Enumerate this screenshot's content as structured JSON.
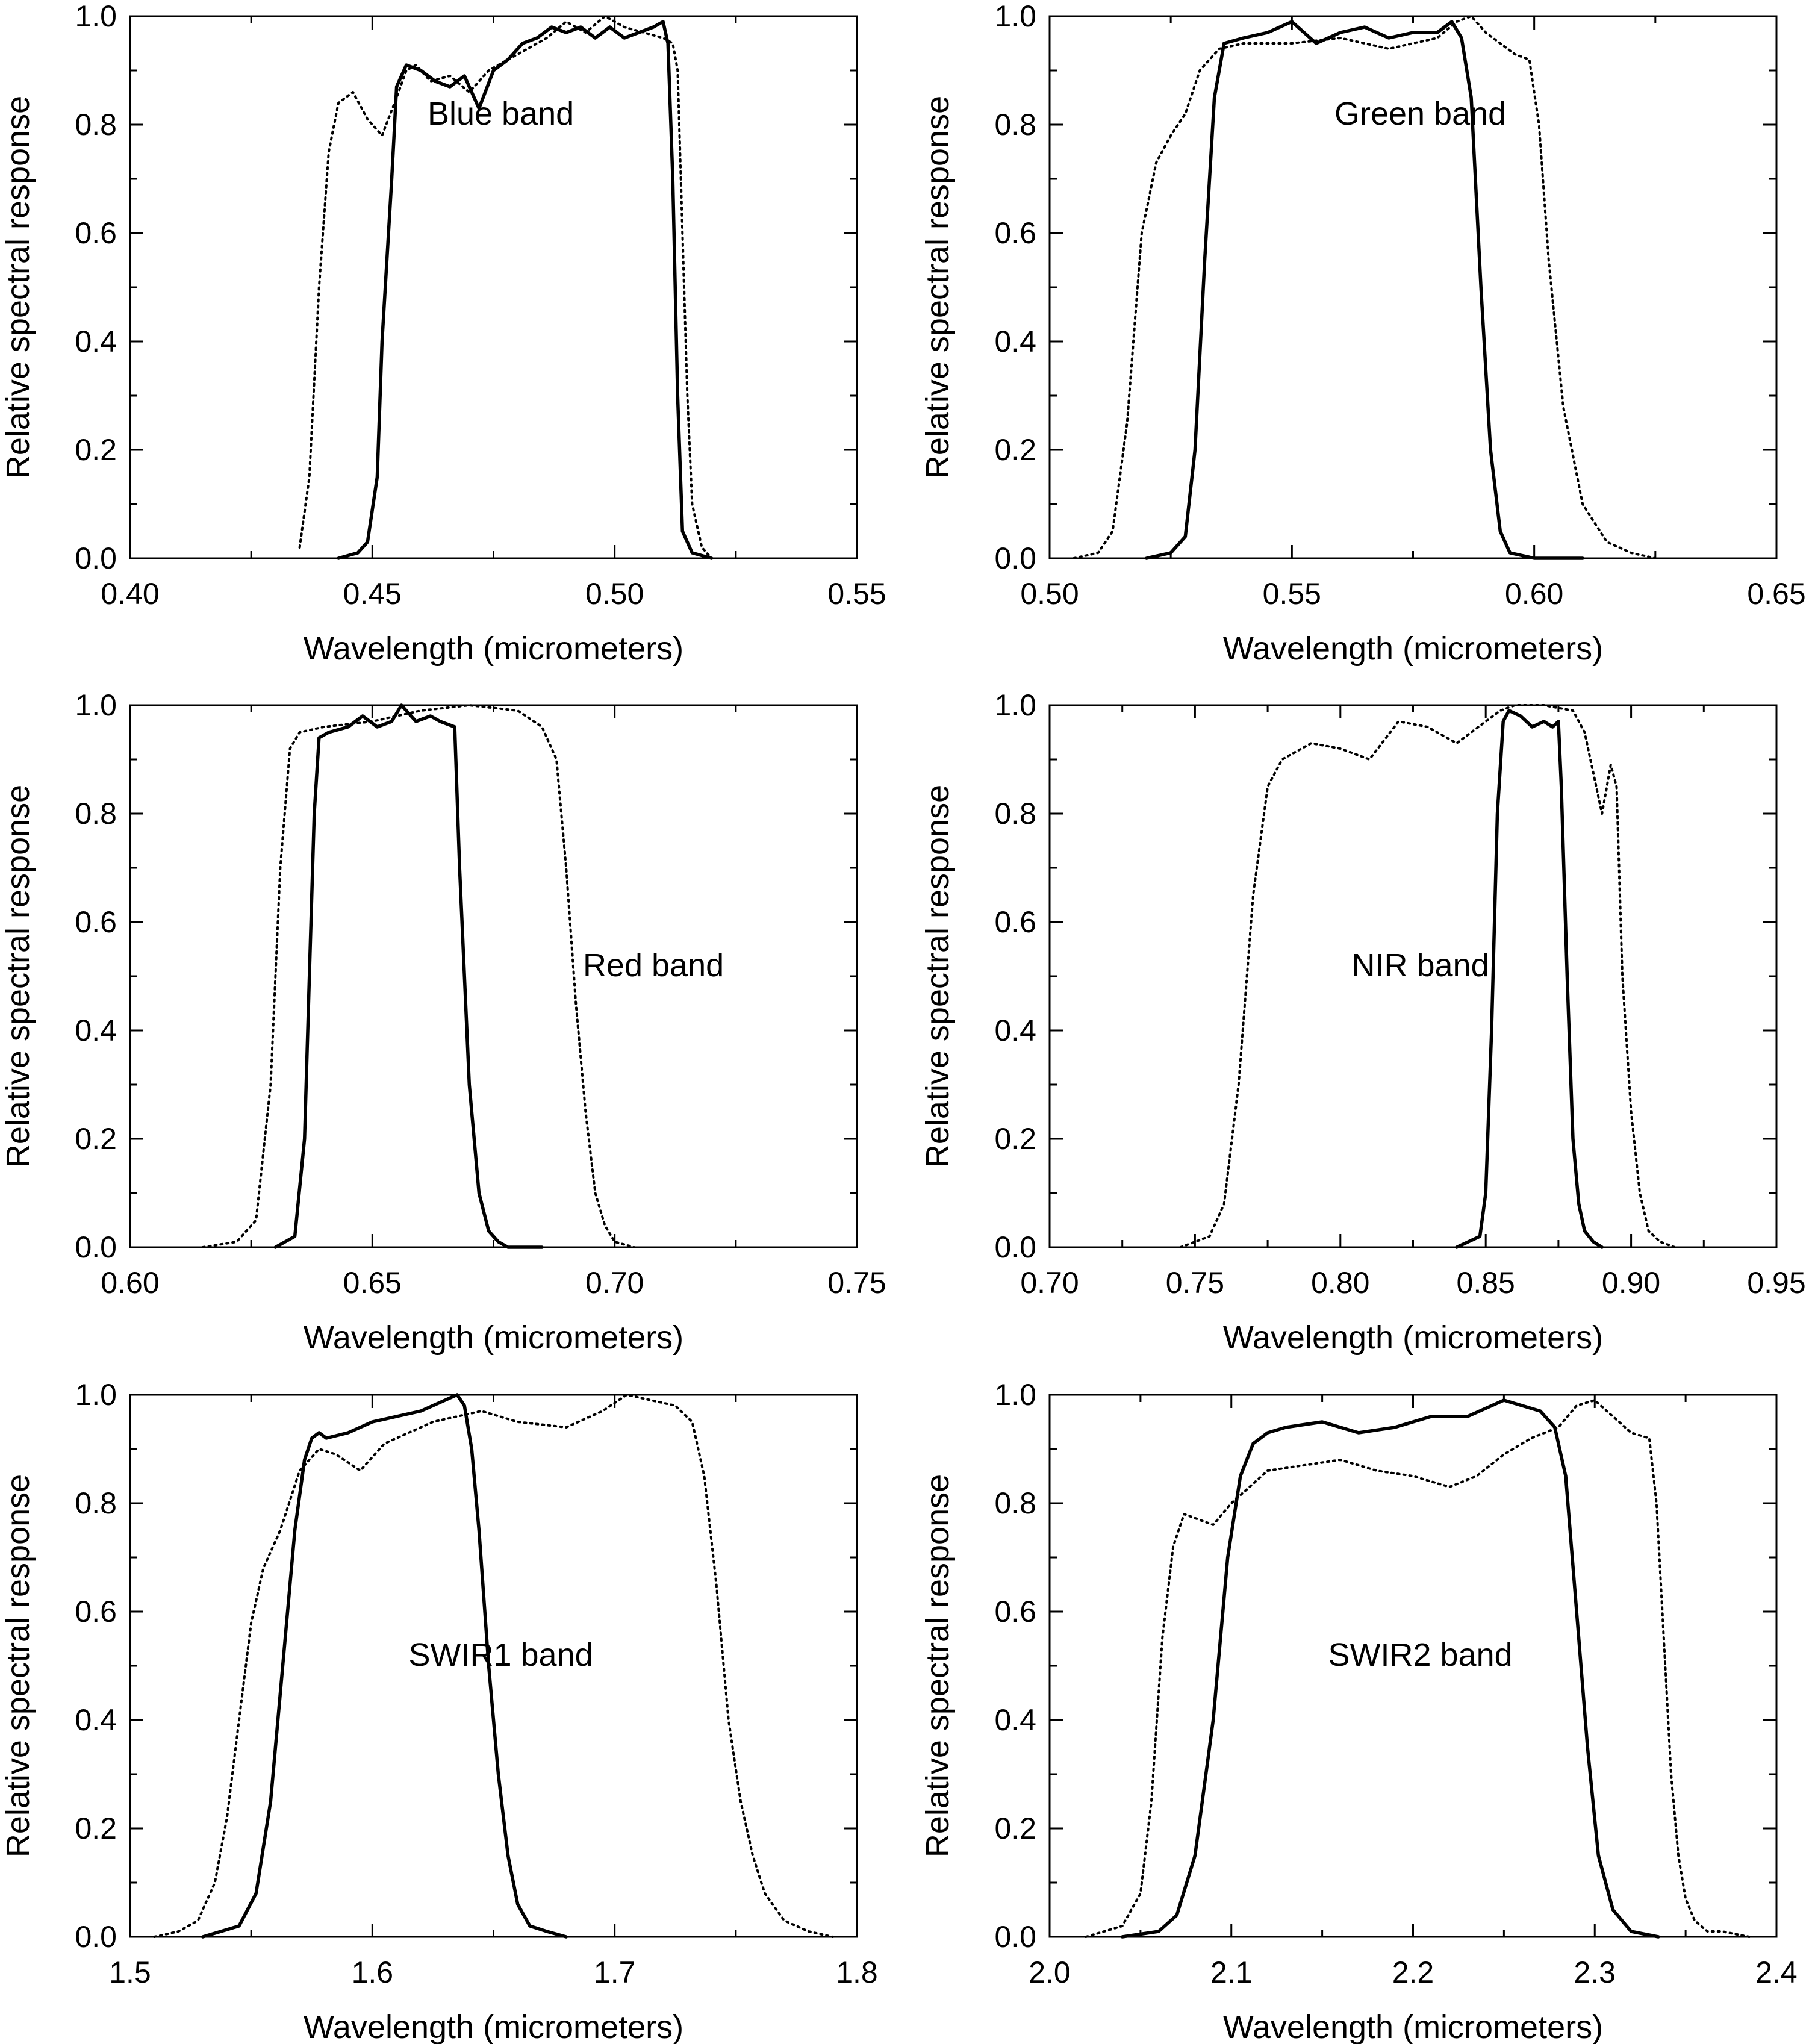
{
  "chart_data": [
    {
      "type": "line",
      "annotation": "Blue band",
      "xlabel": "Wavelength (micrometers)",
      "ylabel": "Relative spectral response",
      "xlim": [
        0.4,
        0.55
      ],
      "ylim": [
        0.0,
        1.0
      ],
      "xticks": [
        0.4,
        0.45,
        0.5,
        0.55
      ],
      "xtick_labels": [
        "0.40",
        "0.45",
        "0.50",
        "0.55"
      ],
      "yticks": [
        0.0,
        0.2,
        0.4,
        0.6,
        0.8,
        1.0
      ],
      "ytick_labels": [
        "0.0",
        "0.2",
        "0.4",
        "0.6",
        "0.8",
        "1.0"
      ],
      "series": [
        {
          "style": "solid",
          "x": [
            0.443,
            0.447,
            0.449,
            0.451,
            0.452,
            0.454,
            0.455,
            0.457,
            0.46,
            0.463,
            0.466,
            0.469,
            0.472,
            0.475,
            0.478,
            0.481,
            0.484,
            0.487,
            0.49,
            0.493,
            0.496,
            0.499,
            0.502,
            0.505,
            0.508,
            0.51,
            0.511,
            0.512,
            0.513,
            0.514,
            0.516,
            0.52
          ],
          "y": [
            0.0,
            0.01,
            0.03,
            0.15,
            0.4,
            0.7,
            0.87,
            0.91,
            0.9,
            0.88,
            0.87,
            0.89,
            0.83,
            0.9,
            0.92,
            0.95,
            0.96,
            0.98,
            0.97,
            0.98,
            0.96,
            0.98,
            0.96,
            0.97,
            0.98,
            0.99,
            0.95,
            0.7,
            0.3,
            0.05,
            0.01,
            0.0
          ]
        },
        {
          "style": "dotted",
          "x": [
            0.435,
            0.437,
            0.439,
            0.441,
            0.443,
            0.446,
            0.449,
            0.452,
            0.455,
            0.457,
            0.459,
            0.462,
            0.466,
            0.47,
            0.474,
            0.478,
            0.482,
            0.486,
            0.49,
            0.494,
            0.498,
            0.502,
            0.506,
            0.51,
            0.512,
            0.513,
            0.514,
            0.515,
            0.516,
            0.518,
            0.52
          ],
          "y": [
            0.02,
            0.15,
            0.5,
            0.75,
            0.84,
            0.86,
            0.81,
            0.78,
            0.85,
            0.9,
            0.91,
            0.88,
            0.89,
            0.86,
            0.9,
            0.92,
            0.94,
            0.96,
            0.99,
            0.97,
            1.0,
            0.98,
            0.97,
            0.96,
            0.95,
            0.9,
            0.6,
            0.3,
            0.1,
            0.02,
            0.0
          ]
        }
      ]
    },
    {
      "type": "line",
      "annotation": "Green band",
      "xlabel": "Wavelength (micrometers)",
      "ylabel": "Relative spectral response",
      "xlim": [
        0.5,
        0.65
      ],
      "ylim": [
        0.0,
        1.0
      ],
      "xticks": [
        0.5,
        0.55,
        0.6,
        0.65
      ],
      "xtick_labels": [
        "0.50",
        "0.55",
        "0.60",
        "0.65"
      ],
      "yticks": [
        0.0,
        0.2,
        0.4,
        0.6,
        0.8,
        1.0
      ],
      "ytick_labels": [
        "0.0",
        "0.2",
        "0.4",
        "0.6",
        "0.8",
        "1.0"
      ],
      "series": [
        {
          "style": "solid",
          "x": [
            0.52,
            0.525,
            0.528,
            0.53,
            0.532,
            0.534,
            0.536,
            0.54,
            0.545,
            0.55,
            0.555,
            0.56,
            0.565,
            0.57,
            0.575,
            0.58,
            0.583,
            0.585,
            0.587,
            0.589,
            0.591,
            0.593,
            0.595,
            0.6,
            0.61
          ],
          "y": [
            0.0,
            0.01,
            0.04,
            0.2,
            0.55,
            0.85,
            0.95,
            0.96,
            0.97,
            0.99,
            0.95,
            0.97,
            0.98,
            0.96,
            0.97,
            0.97,
            0.99,
            0.96,
            0.85,
            0.5,
            0.2,
            0.05,
            0.01,
            0.0,
            0.0
          ]
        },
        {
          "style": "dotted",
          "x": [
            0.505,
            0.51,
            0.513,
            0.516,
            0.519,
            0.522,
            0.525,
            0.528,
            0.531,
            0.535,
            0.54,
            0.55,
            0.56,
            0.57,
            0.58,
            0.584,
            0.587,
            0.59,
            0.593,
            0.596,
            0.599,
            0.601,
            0.603,
            0.606,
            0.61,
            0.615,
            0.62,
            0.625
          ],
          "y": [
            0.0,
            0.01,
            0.05,
            0.25,
            0.6,
            0.73,
            0.78,
            0.82,
            0.9,
            0.94,
            0.95,
            0.95,
            0.96,
            0.94,
            0.96,
            0.99,
            1.0,
            0.97,
            0.95,
            0.93,
            0.92,
            0.8,
            0.55,
            0.28,
            0.1,
            0.03,
            0.01,
            0.0
          ]
        }
      ]
    },
    {
      "type": "line",
      "annotation": "Red band",
      "xlabel": "Wavelength (micrometers)",
      "ylabel": "Relative spectral response",
      "xlim": [
        0.6,
        0.75
      ],
      "ylim": [
        0.0,
        1.0
      ],
      "xticks": [
        0.6,
        0.65,
        0.7,
        0.75
      ],
      "xtick_labels": [
        "0.60",
        "0.65",
        "0.70",
        "0.75"
      ],
      "yticks": [
        0.0,
        0.2,
        0.4,
        0.6,
        0.8,
        1.0
      ],
      "ytick_labels": [
        "0.0",
        "0.2",
        "0.4",
        "0.6",
        "0.8",
        "1.0"
      ],
      "series": [
        {
          "style": "solid",
          "x": [
            0.63,
            0.634,
            0.636,
            0.637,
            0.638,
            0.639,
            0.641,
            0.645,
            0.648,
            0.651,
            0.654,
            0.656,
            0.659,
            0.662,
            0.664,
            0.667,
            0.668,
            0.67,
            0.672,
            0.674,
            0.676,
            0.678,
            0.685
          ],
          "y": [
            0.0,
            0.02,
            0.2,
            0.5,
            0.8,
            0.94,
            0.95,
            0.96,
            0.98,
            0.96,
            0.97,
            1.0,
            0.97,
            0.98,
            0.97,
            0.96,
            0.7,
            0.3,
            0.1,
            0.03,
            0.01,
            0.0,
            0.0
          ]
        },
        {
          "style": "dotted",
          "x": [
            0.615,
            0.622,
            0.626,
            0.629,
            0.631,
            0.633,
            0.635,
            0.64,
            0.65,
            0.66,
            0.67,
            0.68,
            0.685,
            0.688,
            0.69,
            0.692,
            0.694,
            0.696,
            0.698,
            0.7,
            0.704
          ],
          "y": [
            0.0,
            0.01,
            0.05,
            0.3,
            0.7,
            0.92,
            0.95,
            0.96,
            0.97,
            0.99,
            1.0,
            0.99,
            0.96,
            0.9,
            0.7,
            0.45,
            0.25,
            0.1,
            0.04,
            0.01,
            0.0
          ]
        }
      ]
    },
    {
      "type": "line",
      "annotation": "NIR band",
      "xlabel": "Wavelength (micrometers)",
      "ylabel": "Relative spectral response",
      "xlim": [
        0.7,
        0.95
      ],
      "ylim": [
        0.0,
        1.0
      ],
      "xticks": [
        0.7,
        0.75,
        0.8,
        0.85,
        0.9,
        0.95
      ],
      "xtick_labels": [
        "0.70",
        "0.75",
        "0.80",
        "0.85",
        "0.90",
        "0.95"
      ],
      "yticks": [
        0.0,
        0.2,
        0.4,
        0.6,
        0.8,
        1.0
      ],
      "ytick_labels": [
        "0.0",
        "0.2",
        "0.4",
        "0.6",
        "0.8",
        "1.0"
      ],
      "series": [
        {
          "style": "solid",
          "x": [
            0.84,
            0.848,
            0.85,
            0.852,
            0.854,
            0.856,
            0.858,
            0.862,
            0.866,
            0.87,
            0.873,
            0.875,
            0.876,
            0.878,
            0.88,
            0.882,
            0.884,
            0.887,
            0.89
          ],
          "y": [
            0.0,
            0.02,
            0.1,
            0.4,
            0.8,
            0.97,
            0.99,
            0.98,
            0.96,
            0.97,
            0.96,
            0.97,
            0.85,
            0.5,
            0.2,
            0.08,
            0.03,
            0.01,
            0.0
          ]
        },
        {
          "style": "dotted",
          "x": [
            0.745,
            0.755,
            0.76,
            0.765,
            0.77,
            0.775,
            0.78,
            0.79,
            0.8,
            0.81,
            0.82,
            0.83,
            0.84,
            0.85,
            0.855,
            0.86,
            0.87,
            0.88,
            0.884,
            0.888,
            0.89,
            0.893,
            0.895,
            0.897,
            0.9,
            0.903,
            0.906,
            0.91,
            0.915
          ],
          "y": [
            0.0,
            0.02,
            0.08,
            0.3,
            0.65,
            0.85,
            0.9,
            0.93,
            0.92,
            0.9,
            0.97,
            0.96,
            0.93,
            0.97,
            0.99,
            1.0,
            1.0,
            0.99,
            0.95,
            0.85,
            0.8,
            0.89,
            0.85,
            0.5,
            0.25,
            0.1,
            0.03,
            0.01,
            0.0
          ]
        }
      ]
    },
    {
      "type": "line",
      "annotation": "SWIR1 band",
      "xlabel": "Wavelength (micrometers)",
      "ylabel": "Relative spectral response",
      "xlim": [
        1.5,
        1.8
      ],
      "ylim": [
        0.0,
        1.0
      ],
      "xticks": [
        1.5,
        1.6,
        1.7,
        1.8
      ],
      "xtick_labels": [
        "1.5",
        "1.6",
        "1.7",
        "1.8"
      ],
      "yticks": [
        0.0,
        0.2,
        0.4,
        0.6,
        0.8,
        1.0
      ],
      "ytick_labels": [
        "0.0",
        "0.2",
        "0.4",
        "0.6",
        "0.8",
        "1.0"
      ],
      "series": [
        {
          "style": "solid",
          "x": [
            1.53,
            1.545,
            1.552,
            1.558,
            1.563,
            1.568,
            1.572,
            1.575,
            1.578,
            1.581,
            1.59,
            1.6,
            1.61,
            1.62,
            1.63,
            1.635,
            1.638,
            1.641,
            1.644,
            1.648,
            1.652,
            1.656,
            1.66,
            1.665,
            1.672,
            1.68
          ],
          "y": [
            0.0,
            0.02,
            0.08,
            0.25,
            0.5,
            0.75,
            0.88,
            0.92,
            0.93,
            0.92,
            0.93,
            0.95,
            0.96,
            0.97,
            0.99,
            1.0,
            0.98,
            0.9,
            0.75,
            0.5,
            0.3,
            0.15,
            0.06,
            0.02,
            0.01,
            0.0
          ]
        },
        {
          "style": "dotted",
          "x": [
            1.51,
            1.52,
            1.528,
            1.535,
            1.54,
            1.545,
            1.55,
            1.555,
            1.562,
            1.57,
            1.578,
            1.585,
            1.595,
            1.605,
            1.615,
            1.625,
            1.635,
            1.645,
            1.66,
            1.68,
            1.695,
            1.705,
            1.715,
            1.725,
            1.732,
            1.737,
            1.742,
            1.747,
            1.752,
            1.757,
            1.762,
            1.77,
            1.78,
            1.79
          ],
          "y": [
            0.0,
            0.01,
            0.03,
            0.1,
            0.22,
            0.4,
            0.58,
            0.68,
            0.75,
            0.86,
            0.9,
            0.89,
            0.86,
            0.91,
            0.93,
            0.95,
            0.96,
            0.97,
            0.95,
            0.94,
            0.97,
            1.0,
            0.99,
            0.98,
            0.95,
            0.85,
            0.65,
            0.4,
            0.25,
            0.15,
            0.08,
            0.03,
            0.01,
            0.0
          ]
        }
      ]
    },
    {
      "type": "line",
      "annotation": "SWIR2 band",
      "xlabel": "Wavelength (micrometers)",
      "ylabel": "Relative spectral response",
      "xlim": [
        2.0,
        2.4
      ],
      "ylim": [
        0.0,
        1.0
      ],
      "xticks": [
        2.0,
        2.1,
        2.2,
        2.3,
        2.4
      ],
      "xtick_labels": [
        "2.0",
        "2.1",
        "2.2",
        "2.3",
        "2.4"
      ],
      "yticks": [
        0.0,
        0.2,
        0.4,
        0.6,
        0.8,
        1.0
      ],
      "ytick_labels": [
        "0.0",
        "0.2",
        "0.4",
        "0.6",
        "0.8",
        "1.0"
      ],
      "series": [
        {
          "style": "solid",
          "x": [
            2.04,
            2.06,
            2.07,
            2.08,
            2.09,
            2.098,
            2.105,
            2.112,
            2.12,
            2.13,
            2.15,
            2.17,
            2.19,
            2.21,
            2.23,
            2.25,
            2.26,
            2.27,
            2.278,
            2.284,
            2.29,
            2.296,
            2.302,
            2.31,
            2.32,
            2.335
          ],
          "y": [
            0.0,
            0.01,
            0.04,
            0.15,
            0.4,
            0.7,
            0.85,
            0.91,
            0.93,
            0.94,
            0.95,
            0.93,
            0.94,
            0.96,
            0.96,
            0.99,
            0.98,
            0.97,
            0.94,
            0.85,
            0.6,
            0.35,
            0.15,
            0.05,
            0.01,
            0.0
          ]
        },
        {
          "style": "dotted",
          "x": [
            2.02,
            2.04,
            2.05,
            2.056,
            2.062,
            2.068,
            2.074,
            2.082,
            2.09,
            2.1,
            2.12,
            2.14,
            2.16,
            2.18,
            2.2,
            2.22,
            2.235,
            2.25,
            2.265,
            2.28,
            2.29,
            2.3,
            2.31,
            2.32,
            2.33,
            2.334,
            2.338,
            2.342,
            2.346,
            2.35,
            2.355,
            2.362,
            2.37,
            2.385
          ],
          "y": [
            0.0,
            0.02,
            0.08,
            0.25,
            0.55,
            0.72,
            0.78,
            0.77,
            0.76,
            0.8,
            0.86,
            0.87,
            0.88,
            0.86,
            0.85,
            0.83,
            0.85,
            0.89,
            0.92,
            0.94,
            0.98,
            0.99,
            0.96,
            0.93,
            0.92,
            0.8,
            0.55,
            0.3,
            0.15,
            0.07,
            0.03,
            0.01,
            0.01,
            0.0
          ]
        }
      ]
    }
  ]
}
